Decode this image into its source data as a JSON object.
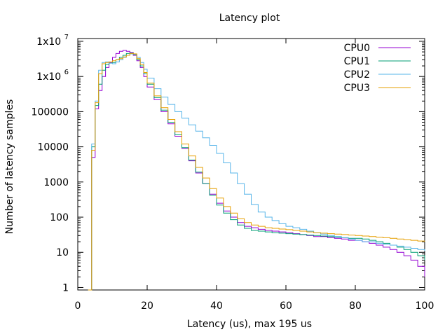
{
  "chart_data": {
    "type": "line",
    "title": "Latency plot",
    "xlabel": "Latency (us), max 195 us",
    "ylabel": "Number of latency samples",
    "xlim": [
      0,
      100
    ],
    "ylim": [
      0.85,
      12000000
    ],
    "yscale": "log",
    "grid": false,
    "legend_position": "top-right",
    "x_ticks": [
      {
        "value": 0,
        "label": "0"
      },
      {
        "value": 20,
        "label": "20"
      },
      {
        "value": 40,
        "label": "40"
      },
      {
        "value": 60,
        "label": "60"
      },
      {
        "value": 80,
        "label": "80"
      },
      {
        "value": 100,
        "label": "100"
      }
    ],
    "y_ticks": [
      {
        "value": 1,
        "label": "1"
      },
      {
        "value": 10,
        "label": "10"
      },
      {
        "value": 100,
        "label": "100"
      },
      {
        "value": 1000,
        "label": "1000"
      },
      {
        "value": 10000,
        "label": "10000"
      },
      {
        "value": 100000,
        "label": "100000"
      },
      {
        "value": 1000000,
        "base": "1x10",
        "exp": "6"
      },
      {
        "value": 10000000,
        "base": "1x10",
        "exp": "7"
      }
    ],
    "x": [
      3,
      4,
      5,
      6,
      7,
      8,
      9,
      10,
      11,
      12,
      13,
      14,
      15,
      16,
      17,
      18,
      19,
      20,
      22,
      24,
      26,
      28,
      30,
      32,
      34,
      36,
      38,
      40,
      42,
      44,
      46,
      48,
      50,
      52,
      54,
      56,
      58,
      60,
      62,
      64,
      66,
      68,
      70,
      72,
      74,
      76,
      78,
      80,
      82,
      84,
      86,
      88,
      90,
      92,
      94,
      96,
      98,
      100
    ],
    "series": [
      {
        "name": "CPU0",
        "color": "#9400d3",
        "values": [
          0.85,
          5000,
          120000,
          400000,
          1000000,
          1800000,
          2500000,
          3500000,
          4500000,
          5200000,
          5500000,
          5200000,
          4800000,
          4000000,
          2800000,
          1800000,
          1000000,
          500000,
          220000,
          100000,
          45000,
          20000,
          9000,
          4000,
          1800,
          900,
          450,
          250,
          150,
          100,
          70,
          55,
          50,
          45,
          42,
          40,
          38,
          36,
          34,
          32,
          30,
          28,
          28,
          26,
          25,
          24,
          22,
          22,
          20,
          18,
          16,
          14,
          12,
          10,
          8,
          6,
          4,
          2
        ]
      },
      {
        "name": "CPU1",
        "color": "#009e73",
        "values": [
          0.85,
          10000,
          150000,
          600000,
          1500000,
          2200000,
          2400000,
          2500000,
          3000000,
          3500000,
          4000000,
          4500000,
          4600000,
          4200000,
          3000000,
          2000000,
          1200000,
          600000,
          250000,
          110000,
          50000,
          22000,
          9500,
          4200,
          1900,
          900,
          420,
          220,
          130,
          85,
          60,
          48,
          42,
          40,
          38,
          36,
          35,
          34,
          33,
          32,
          31,
          30,
          29,
          28,
          27,
          26,
          25,
          25,
          24,
          22,
          20,
          18,
          16,
          14,
          12,
          10,
          8,
          6
        ]
      },
      {
        "name": "CPU2",
        "color": "#56b4e9",
        "values": [
          0.85,
          12000,
          200000,
          1500000,
          2500000,
          2600000,
          2400000,
          2300000,
          2600000,
          3000000,
          3500000,
          4000000,
          4400000,
          4300000,
          3500000,
          2500000,
          1600000,
          900000,
          450000,
          260000,
          160000,
          100000,
          65000,
          42000,
          28000,
          18000,
          11000,
          6500,
          3500,
          1800,
          900,
          450,
          230,
          140,
          100,
          80,
          65,
          55,
          50,
          45,
          40,
          36,
          33,
          30,
          28,
          26,
          24,
          22,
          20,
          20,
          18,
          17,
          16,
          15,
          14,
          13,
          12,
          11
        ]
      },
      {
        "name": "CPU3",
        "color": "#e69f00",
        "values": [
          0.85,
          8000,
          180000,
          1200000,
          2300000,
          2500000,
          2600000,
          2800000,
          3000000,
          3200000,
          3600000,
          4000000,
          4500000,
          4400000,
          3200000,
          2200000,
          1300000,
          650000,
          280000,
          130000,
          60000,
          27000,
          12000,
          5500,
          2600,
          1300,
          650,
          350,
          200,
          130,
          90,
          70,
          60,
          55,
          50,
          48,
          46,
          44,
          42,
          40,
          38,
          36,
          35,
          34,
          33,
          32,
          31,
          30,
          29,
          28,
          27,
          26,
          25,
          24,
          23,
          22,
          21,
          20
        ]
      }
    ]
  }
}
